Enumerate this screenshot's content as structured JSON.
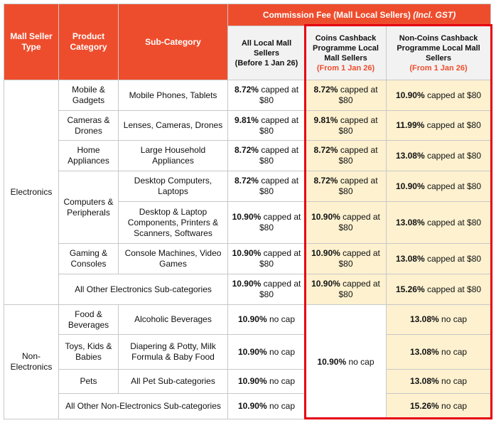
{
  "header": {
    "fee_group": {
      "title": "Commission Fee (Mall Local Sellers)",
      "note": "(Incl. GST)"
    },
    "columns": [
      "Mall Seller Type",
      "Product Category",
      "Sub-Category"
    ],
    "fee_columns": [
      {
        "title": "All Local Mall Sellers",
        "note": "(Before 1 Jan 26)"
      },
      {
        "title": "Coins Cashback Programme Local Mall Sellers",
        "note": "(From 1 Jan 26)"
      },
      {
        "title": "Non-Coins Cashback Programme Local Mall Sellers",
        "note": "(From 1 Jan 26)"
      }
    ]
  },
  "table": {
    "groups": [
      {
        "type": "Electronics",
        "categories": [
          {
            "name": "Mobile & Gadgets",
            "subs": [
              {
                "name": "Mobile Phones, Tablets",
                "all": {
                  "rate": "8.72%",
                  "text": "capped at $80"
                },
                "coins": {
                  "rate": "8.72%",
                  "text": "capped at $80"
                },
                "non_coins": {
                  "rate": "10.90%",
                  "text": "capped at $80"
                }
              }
            ]
          },
          {
            "name": "Cameras & Drones",
            "subs": [
              {
                "name": "Lenses, Cameras, Drones",
                "all": {
                  "rate": "9.81%",
                  "text": "capped at $80"
                },
                "coins": {
                  "rate": "9.81%",
                  "text": "capped at $80"
                },
                "non_coins": {
                  "rate": "11.99%",
                  "text": "capped at $80"
                }
              }
            ]
          },
          {
            "name": "Home Appliances",
            "subs": [
              {
                "name": "Large Household Appliances",
                "all": {
                  "rate": "8.72%",
                  "text": "capped at $80"
                },
                "coins": {
                  "rate": "8.72%",
                  "text": "capped at $80"
                },
                "non_coins": {
                  "rate": "13.08%",
                  "text": "capped at $80"
                }
              }
            ]
          },
          {
            "name": "Computers & Peripherals",
            "subs": [
              {
                "name": "Desktop Computers, Laptops",
                "all": {
                  "rate": "8.72%",
                  "text": "capped at $80"
                },
                "coins": {
                  "rate": "8.72%",
                  "text": "capped at $80"
                },
                "non_coins": {
                  "rate": "10.90%",
                  "text": "capped at $80"
                }
              },
              {
                "name": "Desktop & Laptop Components, Printers & Scanners, Softwares",
                "all": {
                  "rate": "10.90%",
                  "text": "capped at $80"
                },
                "coins": {
                  "rate": "10.90%",
                  "text": "capped at $80"
                },
                "non_coins": {
                  "rate": "13.08%",
                  "text": "capped at $80"
                }
              }
            ]
          },
          {
            "name": "Gaming & Consoles",
            "subs": [
              {
                "name": "Console Machines, Video Games",
                "all": {
                  "rate": "10.90%",
                  "text": "capped at $80"
                },
                "coins": {
                  "rate": "10.90%",
                  "text": "capped at $80"
                },
                "non_coins": {
                  "rate": "13.08%",
                  "text": "capped at $80"
                }
              }
            ]
          },
          {
            "name": "All Other Electronics Sub-categories",
            "all": {
              "rate": "10.90%",
              "text": "capped at $80"
            },
            "coins": {
              "rate": "10.90%",
              "text": "capped at $80"
            },
            "non_coins": {
              "rate": "15.26%",
              "text": "capped at $80"
            }
          }
        ]
      },
      {
        "type": "Non-Electronics",
        "coins": {
          "rate": "10.90%",
          "text": "no cap"
        },
        "categories": [
          {
            "name": "Food & Beverages",
            "subs": [
              {
                "name": "Alcoholic Beverages",
                "all": {
                  "rate": "10.90%",
                  "text": "no cap"
                },
                "non_coins": {
                  "rate": "13.08%",
                  "text": "no cap"
                }
              }
            ]
          },
          {
            "name": "Toys, Kids & Babies",
            "subs": [
              {
                "name": "Diapering & Potty, Milk Formula & Baby Food",
                "all": {
                  "rate": "10.90%",
                  "text": "no cap"
                },
                "non_coins": {
                  "rate": "13.08%",
                  "text": "no cap"
                }
              }
            ]
          },
          {
            "name": "Pets",
            "subs": [
              {
                "name": "All Pet Sub-categories",
                "all": {
                  "rate": "10.90%",
                  "text": "no cap"
                },
                "non_coins": {
                  "rate": "13.08%",
                  "text": "no cap"
                }
              }
            ]
          },
          {
            "name": "All Other Non-Electronics Sub-categories",
            "all": {
              "rate": "10.90%",
              "text": "no cap"
            },
            "non_coins": {
              "rate": "15.26%",
              "text": "no cap"
            }
          }
        ]
      }
    ]
  }
}
